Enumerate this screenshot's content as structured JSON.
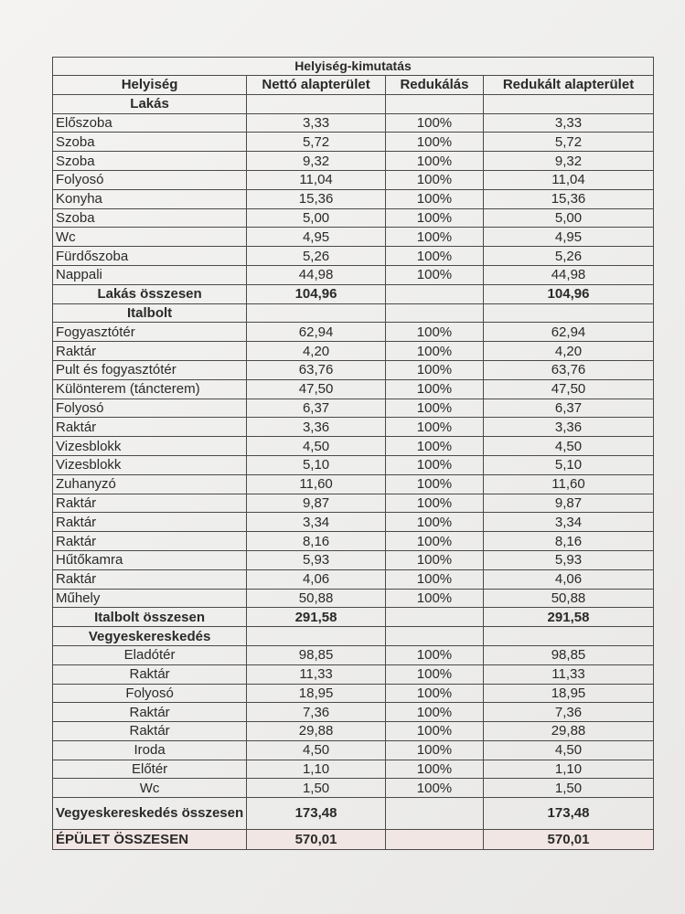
{
  "title": "Helyiség-kimutatás",
  "headers": [
    "Helyiség",
    "Nettó alapterület",
    "Redukálás",
    "Redukált alapterület"
  ],
  "sections": [
    {
      "name": "Lakás",
      "items": [
        [
          "Előszoba",
          "3,33",
          "100%",
          "3,33"
        ],
        [
          "Szoba",
          "5,72",
          "100%",
          "5,72"
        ],
        [
          "Szoba",
          "9,32",
          "100%",
          "9,32"
        ],
        [
          "Folyosó",
          "11,04",
          "100%",
          "11,04"
        ],
        [
          "Konyha",
          "15,36",
          "100%",
          "15,36"
        ],
        [
          "Szoba",
          "5,00",
          "100%",
          "5,00"
        ],
        [
          "Wc",
          "4,95",
          "100%",
          "4,95"
        ],
        [
          "Fürdőszoba",
          "5,26",
          "100%",
          "5,26"
        ],
        [
          "Nappali",
          "44,98",
          "100%",
          "44,98"
        ]
      ],
      "total": [
        "Lakás összesen",
        "104,96",
        "",
        "104,96"
      ]
    },
    {
      "name": "Italbolt",
      "items": [
        [
          "Fogyasztótér",
          "62,94",
          "100%",
          "62,94"
        ],
        [
          "Raktár",
          "4,20",
          "100%",
          "4,20"
        ],
        [
          "Pult és fogyasztótér",
          "63,76",
          "100%",
          "63,76"
        ],
        [
          "Különterem (táncterem)",
          "47,50",
          "100%",
          "47,50"
        ],
        [
          "Folyosó",
          "6,37",
          "100%",
          "6,37"
        ],
        [
          "Raktár",
          "3,36",
          "100%",
          "3,36"
        ],
        [
          "Vizesblokk",
          "4,50",
          "100%",
          "4,50"
        ],
        [
          "Vizesblokk",
          "5,10",
          "100%",
          "5,10"
        ],
        [
          "Zuhanyzó",
          "11,60",
          "100%",
          "11,60"
        ],
        [
          "Raktár",
          "9,87",
          "100%",
          "9,87"
        ],
        [
          "Raktár",
          "3,34",
          "100%",
          "3,34"
        ],
        [
          "Raktár",
          "8,16",
          "100%",
          "8,16"
        ],
        [
          "Hűtőkamra",
          "5,93",
          "100%",
          "5,93"
        ],
        [
          "Raktár",
          "4,06",
          "100%",
          "4,06"
        ],
        [
          "Műhely",
          "50,88",
          "100%",
          "50,88"
        ]
      ],
      "total": [
        "Italbolt összesen",
        "291,58",
        "",
        "291,58"
      ]
    },
    {
      "name": "Vegyeskereskedés",
      "items": [
        [
          "Eladótér",
          "98,85",
          "100%",
          "98,85"
        ],
        [
          "Raktár",
          "11,33",
          "100%",
          "11,33"
        ],
        [
          "Folyosó",
          "18,95",
          "100%",
          "18,95"
        ],
        [
          "Raktár",
          "7,36",
          "100%",
          "7,36"
        ],
        [
          "Raktár",
          "29,88",
          "100%",
          "29,88"
        ],
        [
          "Iroda",
          "4,50",
          "100%",
          "4,50"
        ],
        [
          "Előtér",
          "1,10",
          "100%",
          "1,10"
        ],
        [
          "Wc",
          "1,50",
          "100%",
          "1,50"
        ]
      ],
      "total": [
        "Vegyeskereskedés összesen",
        "173,48",
        "",
        "173,48"
      ]
    }
  ],
  "grand_total": [
    "ÉPÜLET ÖSSZESEN",
    "570,01",
    "",
    "570,01"
  ]
}
